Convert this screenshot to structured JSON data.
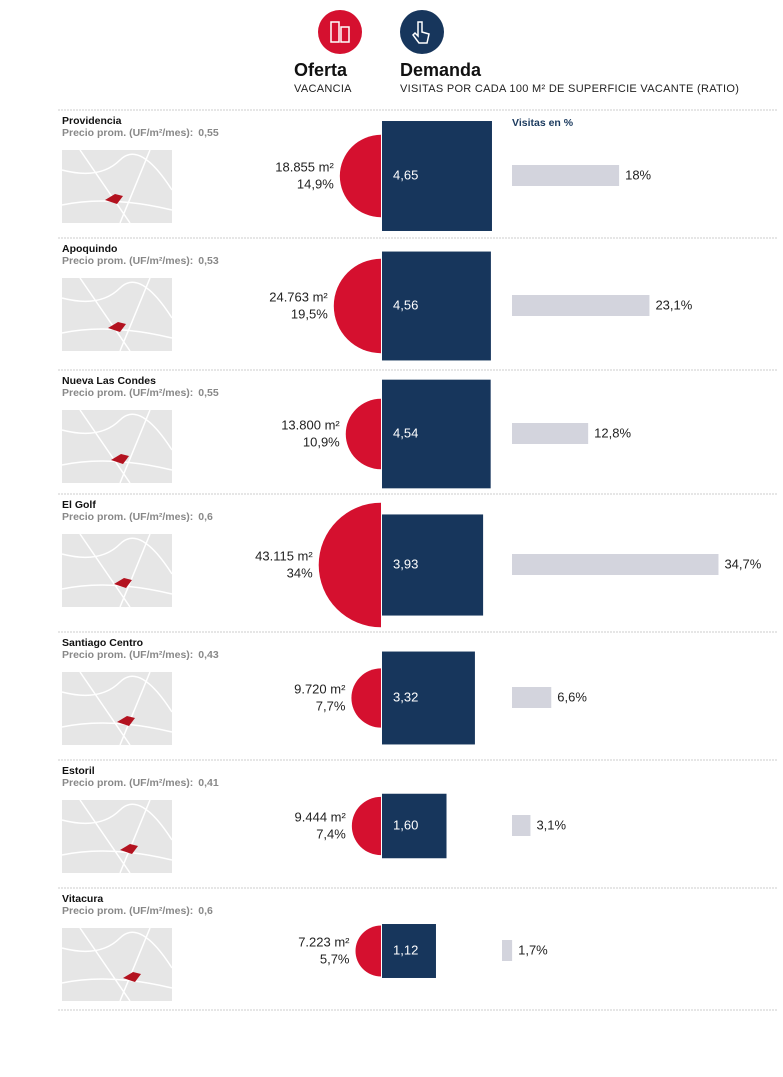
{
  "chart_data": {
    "type": "infographic",
    "supply_title": "Oferta",
    "supply_subtitle": "VACANCIA",
    "demand_title": "Demanda",
    "demand_subtitle": "VISITAS POR CADA 100 M² DE SUPERFICIE VACANTE (RATIO)",
    "visits_title": "Visitas en %",
    "price_label": "Precio prom. (UF/m²/mes):",
    "categories": [
      "Providencia",
      "Apoquindo",
      "Nueva Las Condes",
      "El Golf",
      "Santiago Centro",
      "Estoril",
      "Vitacura"
    ],
    "price": {
      "values": [
        0.55,
        0.53,
        0.55,
        0.6,
        0.43,
        0.41,
        0.6
      ],
      "value_labels": [
        "0,55",
        "0,53",
        "0,55",
        "0,6",
        "0,43",
        "0,41",
        "0,6"
      ]
    },
    "vacant_area": {
      "color": "#d5102f",
      "values": [
        18855,
        24763,
        13800,
        43115,
        9720,
        9444,
        7223
      ],
      "value_labels": [
        "18.855 m²",
        "24.763 m²",
        "13.800 m²",
        "43.115 m²",
        "9.720 m²",
        "9.444 m²",
        "7.223 m²"
      ]
    },
    "vacancy": {
      "values": [
        14.9,
        19.5,
        10.9,
        34,
        7.7,
        7.4,
        5.7
      ],
      "value_labels": [
        "14,9%",
        "19,5%",
        "10,9%",
        "34%",
        "7,7%",
        "7,4%",
        "5,7%"
      ]
    },
    "ratio": {
      "color": "#17365c",
      "values": [
        4.65,
        4.56,
        4.54,
        3.93,
        3.32,
        1.6,
        1.12
      ],
      "value_labels": [
        "4,65",
        "4,56",
        "4,54",
        "3,93",
        "3,32",
        "1,60",
        "1,12"
      ]
    },
    "visits": {
      "color": "#d3d4dd",
      "values": [
        18,
        23.1,
        12.8,
        34.7,
        6.6,
        3.1,
        1.7
      ],
      "value_labels": [
        "18%",
        "23,1%",
        "12,8%",
        "34,7%",
        "6,6%",
        "3,1%",
        "1,7%"
      ]
    }
  }
}
